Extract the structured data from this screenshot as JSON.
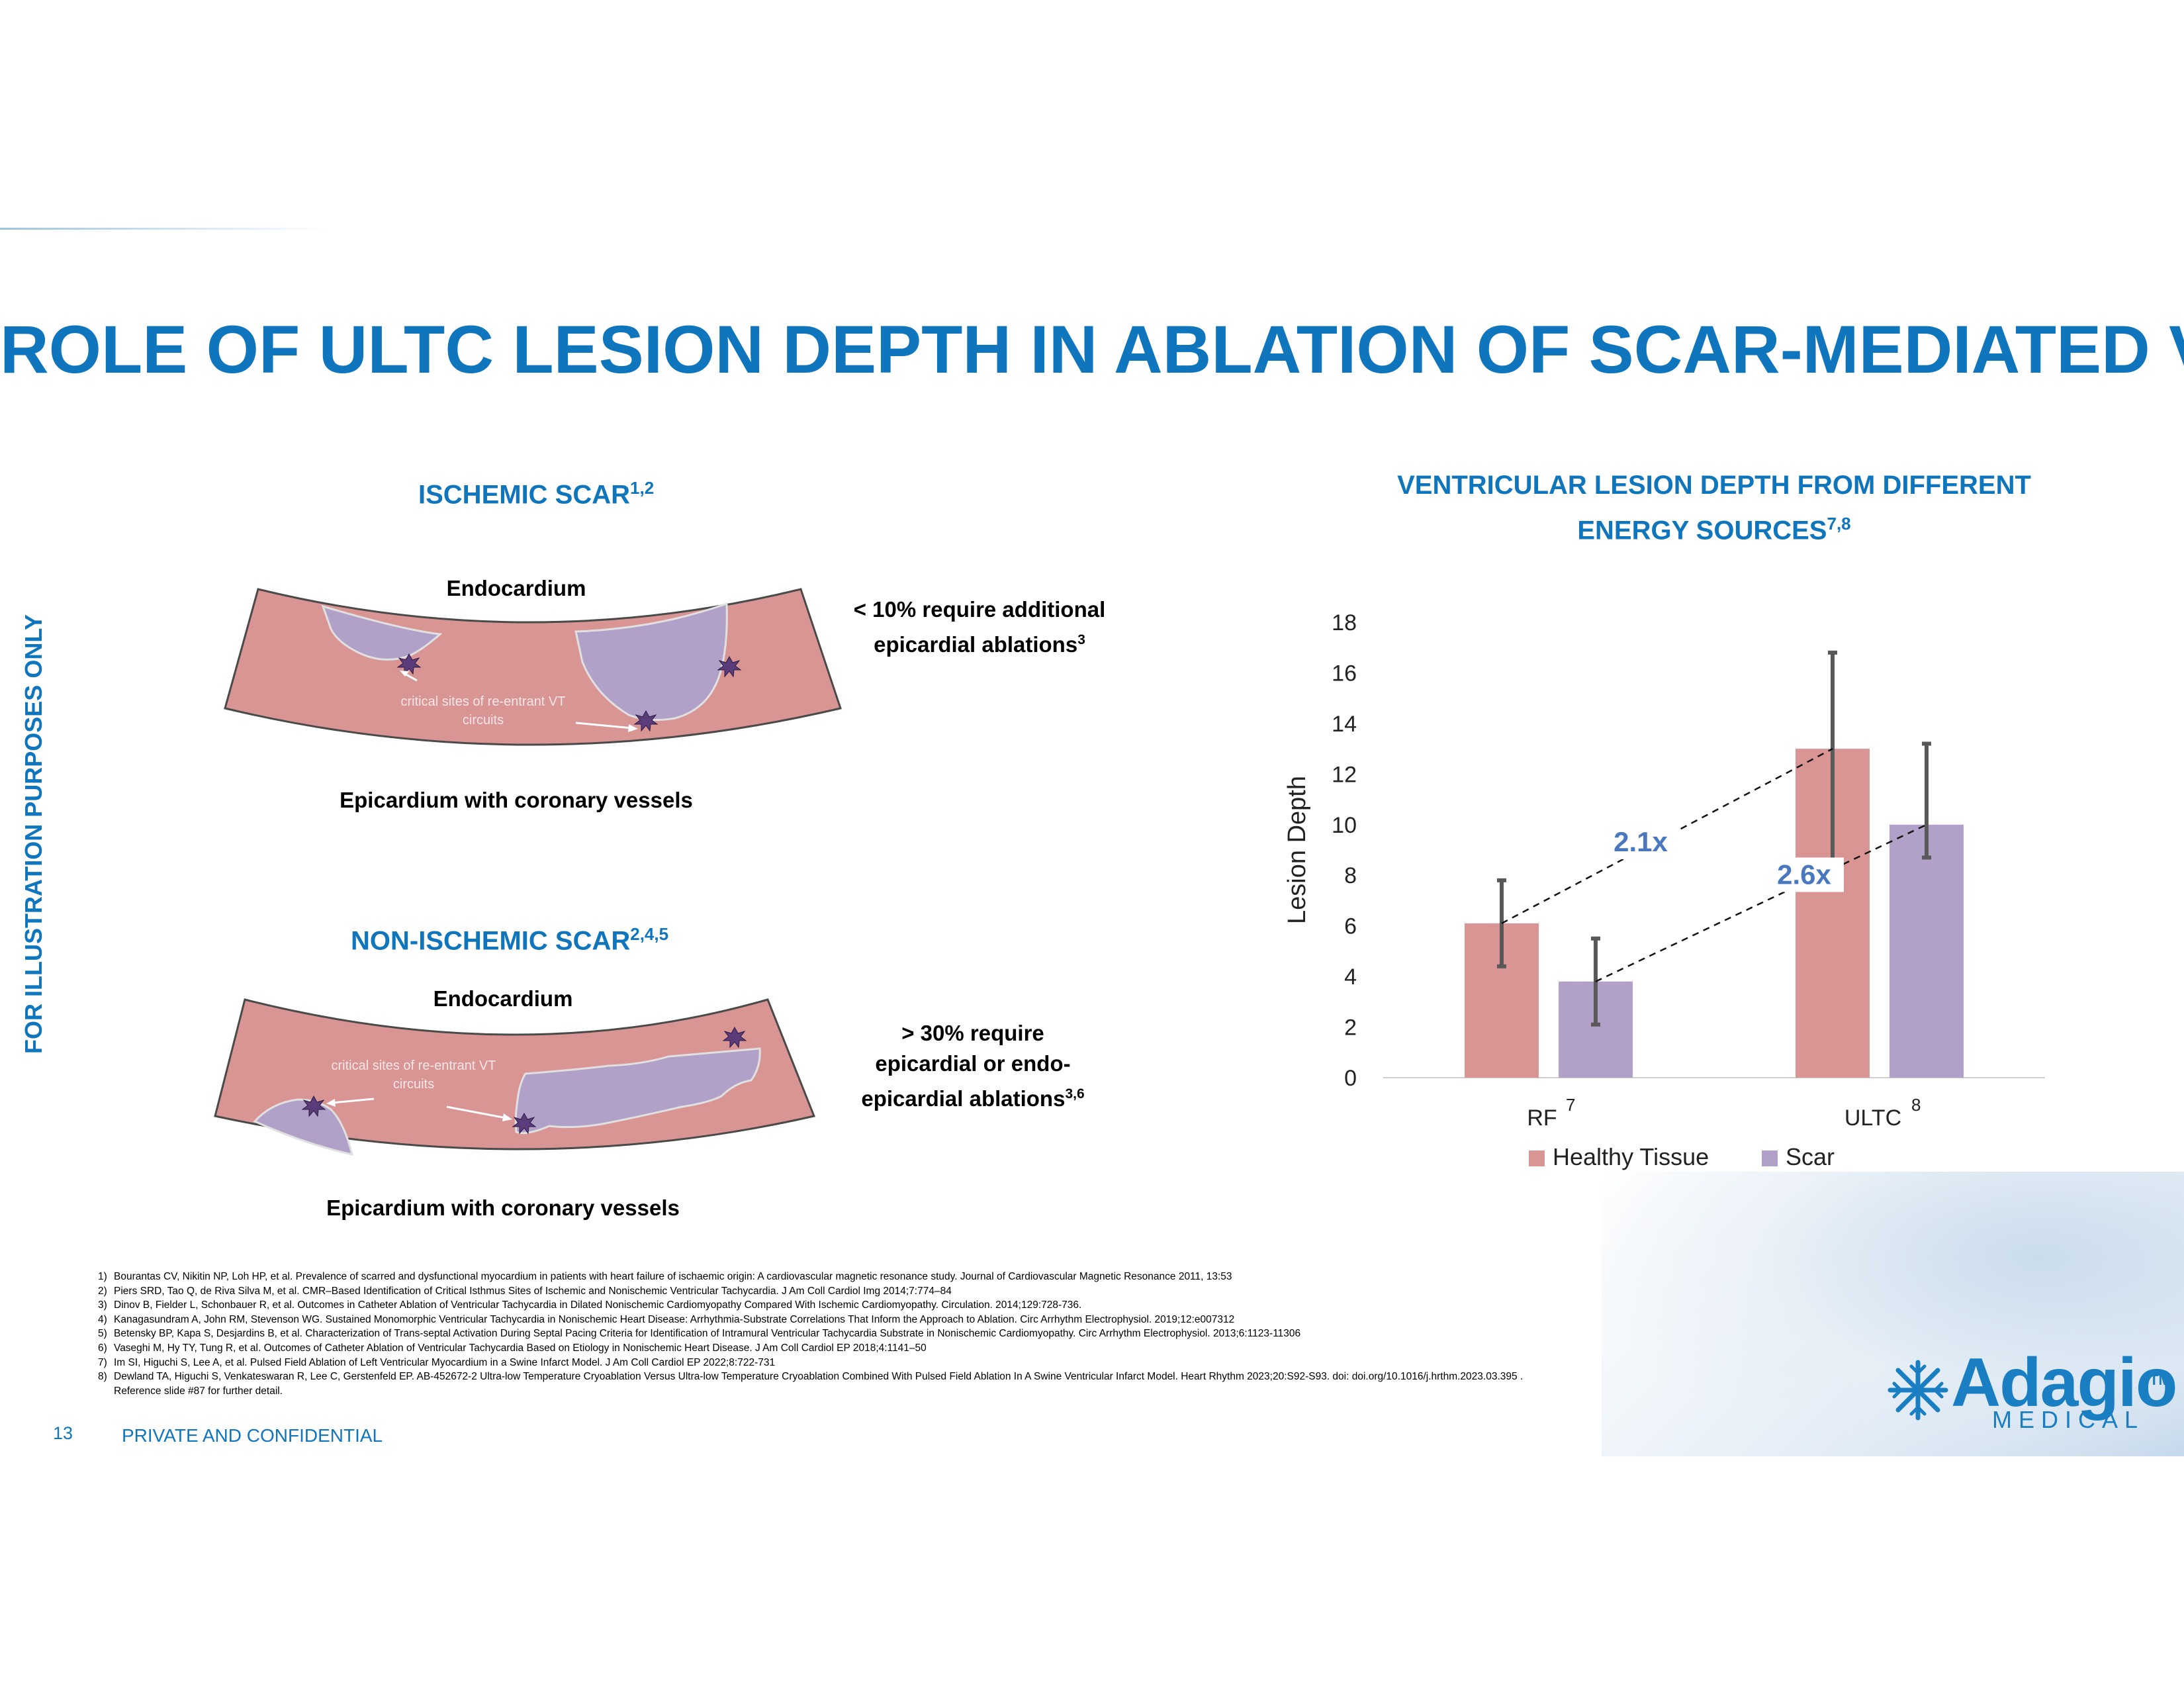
{
  "title": "ROLE OF ULTC LESION DEPTH IN ABLATION OF SCAR-MEDIATED VTs",
  "side_label": "FOR ILLUSTRATION PURPOSES ONLY",
  "ischemic": {
    "heading": "ISCHEMIC SCAR",
    "heading_sup": "1,2",
    "top_label": "Endocardium",
    "bottom_label": "Epicardium with coronary vessels",
    "site_label_1": "critical sites of re-entrant VT",
    "site_label_2": "circuits",
    "callout_1": "< 10% require additional",
    "callout_2": "epicardial ablations",
    "callout_sup": "3"
  },
  "non_ischemic": {
    "heading": "NON-ISCHEMIC SCAR",
    "heading_sup": "2,4,5",
    "top_label": "Endocardium",
    "bottom_label": "Epicardium with coronary vessels",
    "site_label_1": "critical sites of re-entrant VT",
    "site_label_2": "circuits",
    "callout_1": "> 30% require",
    "callout_2": "epicardial or endo-",
    "callout_3": "epicardial ablations",
    "callout_sup": "3,6"
  },
  "chart_heading": {
    "line1": "VENTRICULAR LESION DEPTH FROM DIFFERENT",
    "line2": "ENERGY SOURCES",
    "sup": "7,8"
  },
  "chart_data": {
    "type": "bar",
    "ylabel": "Lesion Depth",
    "ylim": [
      0,
      18
    ],
    "yticks": [
      0,
      2,
      4,
      6,
      8,
      10,
      12,
      14,
      16,
      18
    ],
    "categories": [
      "RF",
      "ULTC"
    ],
    "category_sups": [
      "7",
      "8"
    ],
    "series": [
      {
        "name": "Healthy Tissue",
        "color": "#d99594",
        "values": [
          6.1,
          13.0
        ],
        "err_low": [
          4.4,
          7.9
        ],
        "err_high": [
          7.8,
          16.8
        ]
      },
      {
        "name": "Scar",
        "color": "#b1a0c7",
        "values": [
          3.8,
          10.0
        ],
        "err_low": [
          2.1,
          8.7
        ],
        "err_high": [
          5.5,
          13.2
        ]
      }
    ],
    "annotations": [
      "2.1x",
      "2.6x"
    ]
  },
  "references": [
    {
      "num": "1)",
      "text": "Bourantas CV, Nikitin NP, Loh HP, et al. Prevalence of scarred and dysfunctional myocardium in patients with heart failure of ischaemic origin: A cardiovascular magnetic resonance study. Journal of Cardiovascular Magnetic Resonance 2011, 13:53"
    },
    {
      "num": "2)",
      "text": "Piers SRD, Tao Q, de Riva Silva M, et al. CMR–Based Identification of Critical Isthmus Sites of Ischemic and Nonischemic Ventricular Tachycardia. J Am Coll Cardiol Img 2014;7:774–84"
    },
    {
      "num": "3)",
      "text": "Dinov B, Fielder L, Schonbauer R, et al. Outcomes in Catheter Ablation of Ventricular Tachycardia in Dilated Nonischemic Cardiomyopathy Compared With Ischemic Cardiomyopathy. Circulation. 2014;129:728-736."
    },
    {
      "num": "4)",
      "text": "Kanagasundram A, John RM, Stevenson WG. Sustained Monomorphic Ventricular Tachycardia in Nonischemic Heart Disease: Arrhythmia-Substrate Correlations That Inform the Approach to Ablation. Circ Arrhythm Electrophysiol. 2019;12:e007312"
    },
    {
      "num": "5)",
      "text": "Betensky BP, Kapa S, Desjardins B, et al. Characterization of Trans-septal Activation During Septal Pacing Criteria for Identification of Intramural Ventricular Tachycardia Substrate in Nonischemic Cardiomyopathy. Circ Arrhythm Electrophysiol. 2013;6:1123-11306"
    },
    {
      "num": "6)",
      "text": "Vaseghi M, Hy TY, Tung R, et al. Outcomes of Catheter Ablation of Ventricular Tachycardia Based on Etiology in Nonischemic Heart Disease. J Am Coll Cardiol EP 2018;4:1141–50"
    },
    {
      "num": "7)",
      "text": "Im SI, Higuchi S, Lee A, et al. Pulsed Field Ablation of Left Ventricular Myocardium in a Swine Infarct Model. J Am Coll Cardiol EP 2022;8:722-731"
    },
    {
      "num": "8)",
      "text": "Dewland TA, Higuchi S, Venkateswaran R, Lee C, Gerstenfeld EP. AB-452672-2 Ultra-low Temperature Cryoablation Versus Ultra-low Temperature Cryoablation Combined With Pulsed Field Ablation In A Swine Ventricular Infarct Model. Heart Rhythm 2023;20:S92-S93. doi: doi.org/10.1016/j.hrthm.2023.03.395 ."
    },
    {
      "num": "",
      "text": "Reference slide #87 for further detail."
    }
  ],
  "footer": {
    "page_number": "13",
    "confidential": "PRIVATE AND CONFIDENTIAL"
  },
  "logo": {
    "word": "Adagio",
    "tm": "TM",
    "sub": "MEDICAL"
  }
}
